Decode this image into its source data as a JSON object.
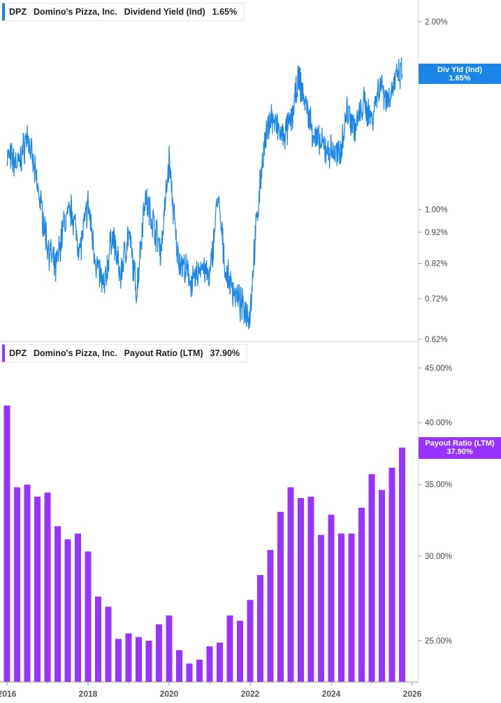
{
  "panel_top": {
    "legend": {
      "ticker": "DPZ",
      "company": "Domino's Pizza, Inc.",
      "metric": "Dividend Yield (Ind)",
      "value": "1.65%"
    },
    "flag": {
      "line1": "Div Yld (Ind)",
      "line2": "1.65%"
    },
    "color": "#1a86e8"
  },
  "panel_bottom": {
    "legend": {
      "ticker": "DPZ",
      "company": "Domino's Pizza, Inc.",
      "metric": "Payout Ratio (LTM)",
      "value": "37.90%"
    },
    "flag": {
      "line1": "Payout Ratio (LTM)",
      "line2": "37.90%"
    },
    "color": "#9933ff"
  },
  "chart_data": [
    {
      "type": "line",
      "name": "Dividend Yield (Ind)",
      "yscale": "log",
      "ytick_labels": [
        "2.00%",
        "1.00%",
        "0.92%",
        "0.82%",
        "0.72%",
        "0.62%"
      ],
      "ytick_values": [
        2.0,
        1.0,
        0.92,
        0.82,
        0.72,
        0.62
      ],
      "x": [
        2016.0,
        2016.3,
        2016.5,
        2016.8,
        2017.0,
        2017.2,
        2017.4,
        2017.6,
        2017.8,
        2018.0,
        2018.2,
        2018.4,
        2018.6,
        2018.8,
        2019.0,
        2019.2,
        2019.4,
        2019.6,
        2019.8,
        2020.0,
        2020.2,
        2020.4,
        2020.6,
        2020.8,
        2021.0,
        2021.2,
        2021.4,
        2021.6,
        2021.8,
        2022.0,
        2022.1,
        2022.3,
        2022.5,
        2022.8,
        2023.0,
        2023.2,
        2023.4,
        2023.6,
        2023.8,
        2024.0,
        2024.2,
        2024.4,
        2024.6,
        2024.8,
        2025.0,
        2025.2,
        2025.4,
        2025.6,
        2025.75
      ],
      "values": [
        1.22,
        1.18,
        1.32,
        1.05,
        0.88,
        0.8,
        0.95,
        1.0,
        0.86,
        1.02,
        0.82,
        0.75,
        0.92,
        0.78,
        0.92,
        0.74,
        1.05,
        0.96,
        0.86,
        1.2,
        0.85,
        0.8,
        0.76,
        0.82,
        0.77,
        1.05,
        0.79,
        0.74,
        0.7,
        0.68,
        0.86,
        1.2,
        1.42,
        1.3,
        1.38,
        1.62,
        1.45,
        1.3,
        1.26,
        1.24,
        1.22,
        1.45,
        1.35,
        1.48,
        1.4,
        1.6,
        1.5,
        1.62,
        1.65
      ],
      "x_ticks": [
        "2016",
        "2018",
        "2020",
        "2022",
        "2024",
        "2026"
      ]
    },
    {
      "type": "bar",
      "name": "Payout Ratio (LTM)",
      "yscale": "log",
      "ytick_labels": [
        "45.00%",
        "40.00%",
        "35.00%",
        "30.00%",
        "25.00%"
      ],
      "ytick_values": [
        45,
        40,
        35,
        30,
        25
      ],
      "x": [
        2016.0,
        2016.25,
        2016.5,
        2016.75,
        2017.0,
        2017.25,
        2017.5,
        2017.75,
        2018.0,
        2018.25,
        2018.5,
        2018.75,
        2019.0,
        2019.25,
        2019.5,
        2019.75,
        2020.0,
        2020.25,
        2020.5,
        2020.75,
        2021.0,
        2021.25,
        2021.5,
        2021.75,
        2022.0,
        2022.25,
        2022.5,
        2022.75,
        2023.0,
        2023.25,
        2023.5,
        2023.75,
        2024.0,
        2024.25,
        2024.5,
        2024.75,
        2025.0,
        2025.25,
        2025.5,
        2025.75
      ],
      "values": [
        41.5,
        34.8,
        35.0,
        34.1,
        34.4,
        32.0,
        31.1,
        31.5,
        30.3,
        27.5,
        26.9,
        25.1,
        25.4,
        25.2,
        25.0,
        25.9,
        26.4,
        24.5,
        23.8,
        24.0,
        24.7,
        24.9,
        26.4,
        26.1,
        27.3,
        28.8,
        30.4,
        33.0,
        34.8,
        34.0,
        34.1,
        31.4,
        32.8,
        31.5,
        31.5,
        33.3,
        35.8,
        34.6,
        36.3,
        37.9
      ],
      "x_ticks": [
        "2016",
        "2018",
        "2020",
        "2022",
        "2024",
        "2026"
      ]
    }
  ]
}
